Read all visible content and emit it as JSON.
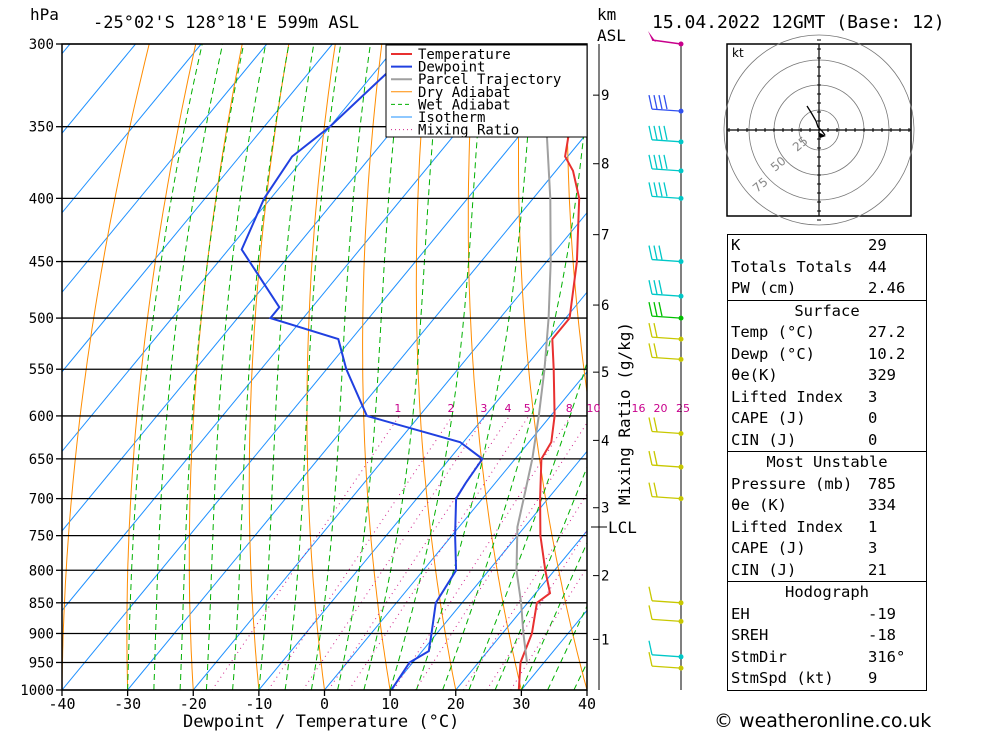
{
  "header": {
    "pressure_unit": "hPa",
    "location": "-25°02'S 128°18'E 599m ASL",
    "km_label": "km",
    "asl_label": "ASL",
    "datetime": "15.04.2022 12GMT (Base: 12)"
  },
  "chart_data": {
    "type": "skew-t",
    "xlabel": "Dewpoint / Temperature (°C)",
    "ylabel": "hPa",
    "right_axis_label": "Mixing Ratio (g/kg)",
    "xlim": [
      -40,
      40
    ],
    "ylim": [
      1000,
      300
    ],
    "x_ticks": [
      -40,
      -30,
      -20,
      -10,
      0,
      10,
      20,
      30,
      40
    ],
    "pressure_ticks": [
      300,
      350,
      400,
      450,
      500,
      550,
      600,
      650,
      700,
      750,
      800,
      850,
      900,
      950,
      1000
    ],
    "height_ticks_km": [
      {
        "km": "1",
        "p": 910
      },
      {
        "km": "2",
        "p": 808
      },
      {
        "km": "3",
        "p": 712
      },
      {
        "km": "4",
        "p": 628
      },
      {
        "km": "5",
        "p": 553
      },
      {
        "km": "6",
        "p": 488
      },
      {
        "km": "7",
        "p": 428
      },
      {
        "km": "8",
        "p": 375
      },
      {
        "km": "9",
        "p": 330
      }
    ],
    "lcl": {
      "label": "LCL",
      "p": 738
    },
    "mixing_ratio_labels": [
      "1",
      "2",
      "3",
      "4",
      "5",
      "8",
      "10",
      "16",
      "20",
      "25"
    ],
    "legend": [
      {
        "name": "Temperature",
        "color": "#e83030",
        "style": "solid"
      },
      {
        "name": "Dewpoint",
        "color": "#2040e0",
        "style": "solid"
      },
      {
        "name": "Parcel Trajectory",
        "color": "#a0a0a0",
        "style": "solid"
      },
      {
        "name": "Dry Adiabat",
        "color": "#ff8c00",
        "style": "solid"
      },
      {
        "name": "Wet Adiabat",
        "color": "#00b000",
        "style": "dashed"
      },
      {
        "name": "Isotherm",
        "color": "#1e90ff",
        "style": "solid"
      },
      {
        "name": "Mixing Ratio",
        "color": "#d0208a",
        "style": "dotted"
      }
    ],
    "series": [
      {
        "name": "Temperature",
        "color": "#e83030",
        "points": [
          [
            1000,
            29.6
          ],
          [
            950,
            26.4
          ],
          [
            900,
            24.5
          ],
          [
            850,
            21.4
          ],
          [
            835,
            22.2
          ],
          [
            800,
            18.6
          ],
          [
            750,
            13.5
          ],
          [
            700,
            8.8
          ],
          [
            650,
            4.0
          ],
          [
            630,
            3.4
          ],
          [
            600,
            0.6
          ],
          [
            550,
            -5.4
          ],
          [
            520,
            -9.4
          ],
          [
            500,
            -9.4
          ],
          [
            450,
            -15.4
          ],
          [
            400,
            -23.0
          ],
          [
            380,
            -27.4
          ],
          [
            370,
            -30.4
          ],
          [
            350,
            -33.4
          ],
          [
            300,
            -40.8
          ]
        ]
      },
      {
        "name": "Dewpoint",
        "color": "#2040e0",
        "points": [
          [
            1000,
            10.2
          ],
          [
            950,
            9.5
          ],
          [
            930,
            11.0
          ],
          [
            900,
            9.2
          ],
          [
            850,
            6.0
          ],
          [
            800,
            5.0
          ],
          [
            750,
            0.5
          ],
          [
            700,
            -4.0
          ],
          [
            680,
            -4.5
          ],
          [
            650,
            -5.0
          ],
          [
            630,
            -10.5
          ],
          [
            600,
            -28.0
          ],
          [
            550,
            -37.0
          ],
          [
            520,
            -42.0
          ],
          [
            500,
            -55.0
          ],
          [
            490,
            -55.0
          ],
          [
            440,
            -68.0
          ],
          [
            400,
            -71.0
          ],
          [
            370,
            -72.0
          ],
          [
            350,
            -70.0
          ],
          [
            300,
            -67.0
          ]
        ]
      },
      {
        "name": "Parcel Trajectory",
        "color": "#a0a0a0",
        "points": [
          [
            950,
            27.4
          ],
          [
            900,
            23.2
          ],
          [
            850,
            19.0
          ],
          [
            800,
            14.2
          ],
          [
            738,
            8.9
          ],
          [
            700,
            6.3
          ],
          [
            650,
            2.6
          ],
          [
            600,
            -1.8
          ],
          [
            550,
            -6.8
          ],
          [
            500,
            -12.6
          ],
          [
            450,
            -19.4
          ],
          [
            400,
            -27.4
          ],
          [
            350,
            -37.0
          ],
          [
            310,
            -46.5
          ]
        ]
      }
    ],
    "wind_barbs": [
      {
        "p": 300,
        "color": "#c8008c",
        "pennant": true
      },
      {
        "p": 340,
        "color": "#3050f0",
        "flags": 4
      },
      {
        "p": 360,
        "color": "#00c8c8",
        "flags": 4
      },
      {
        "p": 380,
        "color": "#00c8c8",
        "flags": 4
      },
      {
        "p": 400,
        "color": "#00c8c8",
        "flags": 4
      },
      {
        "p": 450,
        "color": "#00c8c8",
        "flags": 3
      },
      {
        "p": 480,
        "color": "#00c8c8",
        "flags": 3
      },
      {
        "p": 500,
        "color": "#00c000",
        "flags": 3
      },
      {
        "p": 520,
        "color": "#c8c800",
        "flags": 2
      },
      {
        "p": 540,
        "color": "#c8c800",
        "flags": 2
      },
      {
        "p": 620,
        "color": "#c8c800",
        "flags": 2
      },
      {
        "p": 660,
        "color": "#c8c800",
        "flags": 2
      },
      {
        "p": 700,
        "color": "#c8c800",
        "flags": 2
      },
      {
        "p": 850,
        "color": "#c8c800",
        "flags": 1
      },
      {
        "p": 880,
        "color": "#c8c800",
        "flags": 1
      },
      {
        "p": 940,
        "color": "#00c8c8",
        "flags": 1
      },
      {
        "p": 960,
        "color": "#c8c800",
        "flags": 1
      }
    ],
    "hodograph": {
      "unit": "kt",
      "ring_labels": [
        "25",
        "50",
        "75"
      ]
    }
  },
  "indices": {
    "k": {
      "label": "K",
      "value": "29"
    },
    "tt": {
      "label": "Totals Totals",
      "value": "44"
    },
    "pw": {
      "label": "PW (cm)",
      "value": "2.46"
    }
  },
  "surface": {
    "title": "Surface",
    "rows": [
      {
        "label": "Temp (°C)",
        "value": "27.2"
      },
      {
        "label": "Dewp (°C)",
        "value": "10.2"
      },
      {
        "label": "θe(K)",
        "value": "329"
      },
      {
        "label": "Lifted Index",
        "value": "3"
      },
      {
        "label": "CAPE (J)",
        "value": "0"
      },
      {
        "label": "CIN (J)",
        "value": "0"
      }
    ]
  },
  "most_unstable": {
    "title": "Most Unstable",
    "rows": [
      {
        "label": "Pressure (mb)",
        "value": "785"
      },
      {
        "label": "θe (K)",
        "value": "334"
      },
      {
        "label": "Lifted Index",
        "value": "1"
      },
      {
        "label": "CAPE (J)",
        "value": "3"
      },
      {
        "label": "CIN (J)",
        "value": "21"
      }
    ]
  },
  "hodograph_table": {
    "title": "Hodograph",
    "rows": [
      {
        "label": "EH",
        "value": "-19"
      },
      {
        "label": "SREH",
        "value": "-18"
      },
      {
        "label": "StmDir",
        "value": "316°"
      },
      {
        "label": "StmSpd (kt)",
        "value": "9"
      }
    ]
  },
  "credit": "© weatheronline.co.uk"
}
